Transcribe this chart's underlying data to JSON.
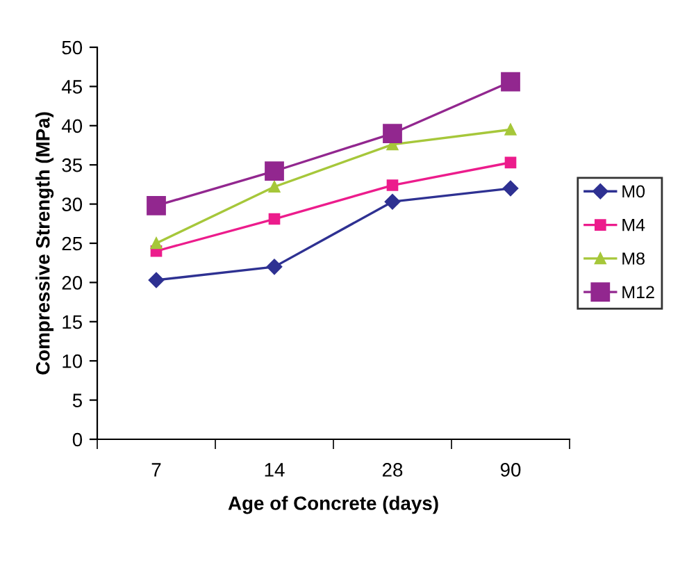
{
  "chart_data": {
    "type": "line",
    "xlabel": "Age of Concrete (days)",
    "ylabel": "Compressive Strength (MPa)",
    "categories": [
      "7",
      "14",
      "28",
      "90"
    ],
    "series": [
      {
        "name": "M0",
        "color": "#2e3192",
        "marker": "diamond",
        "values": [
          20.3,
          22.0,
          30.3,
          32.0
        ]
      },
      {
        "name": "M4",
        "color": "#ec1c8c",
        "marker": "square",
        "values": [
          24.0,
          28.1,
          32.4,
          35.3
        ]
      },
      {
        "name": "M8",
        "color": "#a6c73a",
        "marker": "triangle",
        "values": [
          25.0,
          32.2,
          37.6,
          39.5
        ]
      },
      {
        "name": "M12",
        "color": "#92278f",
        "marker": "square",
        "values": [
          29.8,
          34.2,
          39.0,
          45.6
        ]
      }
    ],
    "ylim": [
      0,
      50
    ],
    "yticks": [
      0,
      5,
      10,
      15,
      20,
      25,
      30,
      35,
      40,
      45,
      50
    ],
    "grid": false,
    "legend": "right",
    "line_style": "solid"
  }
}
